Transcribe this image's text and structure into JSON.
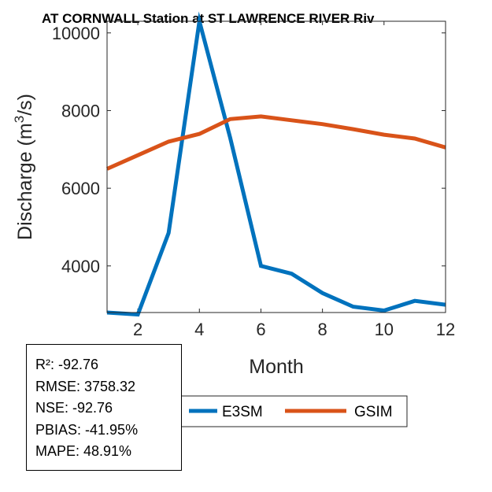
{
  "chart_data": {
    "type": "line",
    "title": "AT CORNWALL  Station at  ST LAWRENCE RIVER  Riv",
    "xlabel": "Month",
    "ylabel": "Discharge (m³/s)",
    "ylabel_parts": {
      "prefix": "Discharge (m",
      "superscript": "3",
      "suffix": "/s)"
    },
    "xlim": [
      1,
      12
    ],
    "ylim": [
      2800,
      10300
    ],
    "xticks": [
      2,
      4,
      6,
      8,
      10,
      12
    ],
    "yticks": [
      4000,
      6000,
      8000,
      10000
    ],
    "x": [
      1,
      2,
      3,
      4,
      5,
      6,
      7,
      8,
      9,
      10,
      11,
      12
    ],
    "series": [
      {
        "name": "E3SM",
        "color": "#0072BD",
        "values": [
          2800,
          2750,
          4850,
          10300,
          7300,
          4000,
          3800,
          3300,
          2950,
          2850,
          3100,
          3000
        ]
      },
      {
        "name": "GSIM",
        "color": "#D95319",
        "values": [
          6500,
          6850,
          7200,
          7400,
          7780,
          7850,
          7750,
          7650,
          7520,
          7380,
          7280,
          7050
        ]
      }
    ],
    "legend": {
      "entries": [
        "E3SM",
        "GSIM"
      ],
      "location": "bottom"
    }
  },
  "stats": {
    "r2": "R²: -92.76",
    "rmse": "RMSE: 3758.32",
    "nse": "NSE: -92.76",
    "pbias": "PBIAS: -41.95%",
    "mape": "MAPE: 48.91%"
  }
}
